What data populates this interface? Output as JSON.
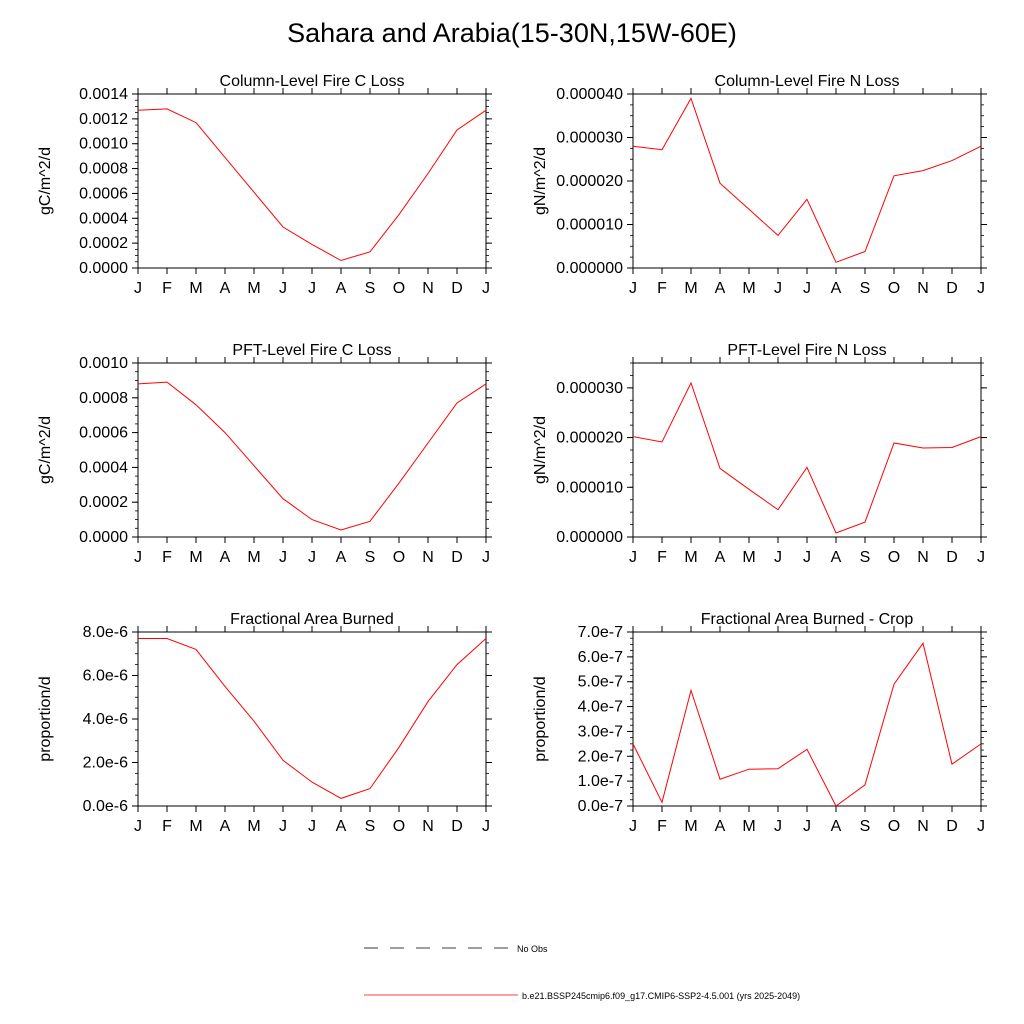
{
  "title": "Sahara and Arabia(15-30N,15W-60E)",
  "colors": {
    "model": "#ff0000",
    "axis": "#000000",
    "obs": "#000000"
  },
  "legend": {
    "obs_label": "No Obs",
    "model_label": "b.e21.BSSP245cmip6.f09_g17.CMIP6-SSP2-4.5.001 (yrs 2025-2049)"
  },
  "chart_data": [
    {
      "type": "line",
      "title": "Column-Level Fire C Loss",
      "ylabel": "gC/m^2/d",
      "categories": [
        "J",
        "F",
        "M",
        "A",
        "M",
        "J",
        "J",
        "A",
        "S",
        "O",
        "N",
        "D",
        "J"
      ],
      "ylim": [
        0,
        0.0014
      ],
      "yticks": [
        0,
        0.0002,
        0.0004,
        0.0006,
        0.0008,
        0.001,
        0.0012,
        0.0014
      ],
      "ytick_labels": [
        "0.0000",
        "0.0002",
        "0.0004",
        "0.0006",
        "0.0008",
        "0.0010",
        "0.0012",
        "0.0014"
      ],
      "series": [
        {
          "values": [
            0.00127,
            0.00128,
            0.00117,
            0.00089,
            0.00061,
            0.00033,
            0.00019,
            6e-05,
            0.00013,
            0.00043,
            0.00076,
            0.00111,
            0.00127
          ]
        }
      ]
    },
    {
      "type": "line",
      "title": "Column-Level Fire N Loss",
      "ylabel": "gN/m^2/d",
      "categories": [
        "J",
        "F",
        "M",
        "A",
        "M",
        "J",
        "J",
        "A",
        "S",
        "O",
        "N",
        "D",
        "J"
      ],
      "ylim": [
        0,
        4e-05
      ],
      "yticks": [
        0,
        1e-05,
        2e-05,
        3e-05,
        4e-05
      ],
      "ytick_labels": [
        "0.000000",
        "0.000010",
        "0.000020",
        "0.000030",
        "0.000040"
      ],
      "series": [
        {
          "values": [
            2.8e-05,
            2.72e-05,
            3.9e-05,
            1.95e-05,
            1.35e-05,
            7.5e-06,
            1.58e-05,
            1.3e-06,
            3.8e-06,
            2.12e-05,
            2.24e-05,
            2.47e-05,
            2.8e-05
          ]
        }
      ]
    },
    {
      "type": "line",
      "title": "PFT-Level Fire C Loss",
      "ylabel": "gC/m^2/d",
      "categories": [
        "J",
        "F",
        "M",
        "A",
        "M",
        "J",
        "J",
        "A",
        "S",
        "O",
        "N",
        "D",
        "J"
      ],
      "ylim": [
        0,
        0.001
      ],
      "yticks": [
        0,
        0.0002,
        0.0004,
        0.0006,
        0.0008,
        0.001
      ],
      "ytick_labels": [
        "0.0000",
        "0.0002",
        "0.0004",
        "0.0006",
        "0.0008",
        "0.0010"
      ],
      "series": [
        {
          "values": [
            0.00088,
            0.00089,
            0.00076,
            0.0006,
            0.00041,
            0.00022,
            0.0001,
            4e-05,
            9e-05,
            0.00031,
            0.00054,
            0.00077,
            0.00088
          ]
        }
      ]
    },
    {
      "type": "line",
      "title": "PFT-Level Fire N Loss",
      "ylabel": "gN/m^2/d",
      "categories": [
        "J",
        "F",
        "M",
        "A",
        "M",
        "J",
        "J",
        "A",
        "S",
        "O",
        "N",
        "D",
        "J"
      ],
      "ylim": [
        0,
        3.5e-05
      ],
      "yticks": [
        0,
        1e-05,
        2e-05,
        3e-05
      ],
      "ytick_labels": [
        "0.000000",
        "0.000010",
        "0.000020",
        "0.000030"
      ],
      "series": [
        {
          "values": [
            2.02e-05,
            1.91e-05,
            3.1e-05,
            1.38e-05,
            9.6e-06,
            5.5e-06,
            1.4e-05,
            8e-07,
            3e-06,
            1.89e-05,
            1.79e-05,
            1.8e-05,
            2.02e-05
          ]
        }
      ]
    },
    {
      "type": "line",
      "title": "Fractional Area Burned",
      "ylabel": "proportion/d",
      "categories": [
        "J",
        "F",
        "M",
        "A",
        "M",
        "J",
        "J",
        "A",
        "S",
        "O",
        "N",
        "D",
        "J"
      ],
      "ylim": [
        0,
        8e-06
      ],
      "yticks": [
        0,
        2e-06,
        4e-06,
        6e-06,
        8e-06
      ],
      "ytick_labels": [
        "0.0e-6",
        "2.0e-6",
        "4.0e-6",
        "6.0e-6",
        "8.0e-6"
      ],
      "series": [
        {
          "values": [
            7.7e-06,
            7.7e-06,
            7.2e-06,
            5.5e-06,
            3.9e-06,
            2.1e-06,
            1.1e-06,
            3.5e-07,
            8e-07,
            2.7e-06,
            4.8e-06,
            6.5e-06,
            7.7e-06
          ]
        }
      ]
    },
    {
      "type": "line",
      "title": "Fractional Area Burned - Crop",
      "ylabel": "proportion/d",
      "categories": [
        "J",
        "F",
        "M",
        "A",
        "M",
        "J",
        "J",
        "A",
        "S",
        "O",
        "N",
        "D",
        "J"
      ],
      "ylim": [
        0,
        7e-07
      ],
      "yticks": [
        0,
        1e-07,
        2e-07,
        3e-07,
        4e-07,
        5e-07,
        6e-07,
        7e-07
      ],
      "ytick_labels": [
        "0.0e-7",
        "1.0e-7",
        "2.0e-7",
        "3.0e-7",
        "4.0e-7",
        "5.0e-7",
        "6.0e-7",
        "7.0e-7"
      ],
      "series": [
        {
          "values": [
            2.5e-07,
            1.5e-08,
            4.65e-07,
            1.08e-07,
            1.48e-07,
            1.5e-07,
            2.28e-07,
            0.0,
            8.5e-08,
            4.9e-07,
            6.55e-07,
            1.68e-07,
            2.5e-07
          ]
        }
      ]
    }
  ]
}
